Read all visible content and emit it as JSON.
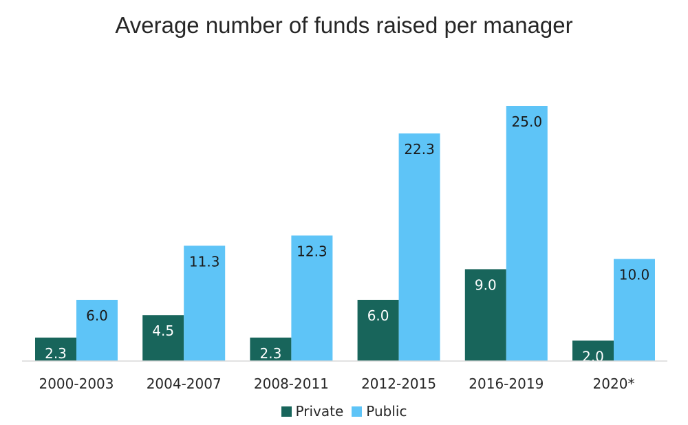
{
  "chart_data": {
    "type": "bar",
    "title": "Average number of funds raised per manager",
    "categories": [
      "2000-2003",
      "2004-2007",
      "2008-2011",
      "2012-2015",
      "2016-2019",
      "2020*"
    ],
    "series": [
      {
        "name": "Private",
        "values": [
          2.3,
          4.5,
          2.3,
          6.0,
          9.0,
          2.0
        ],
        "labels": [
          "2.3",
          "4.5",
          "2.3",
          "6.0",
          "9.0",
          "2.0"
        ],
        "color": "#18655b",
        "label_color": "#ffffff"
      },
      {
        "name": "Public",
        "values": [
          6.0,
          11.3,
          12.3,
          22.3,
          25.0,
          10.0
        ],
        "labels": [
          "6.0",
          "11.3",
          "12.3",
          "22.3",
          "25.0",
          "10.0"
        ],
        "color": "#5ec4f7",
        "label_color": "#1a1a1a"
      }
    ],
    "xlabel": "",
    "ylabel": "",
    "ylim": [
      0,
      25
    ],
    "grid": false,
    "legend": "bottom"
  }
}
